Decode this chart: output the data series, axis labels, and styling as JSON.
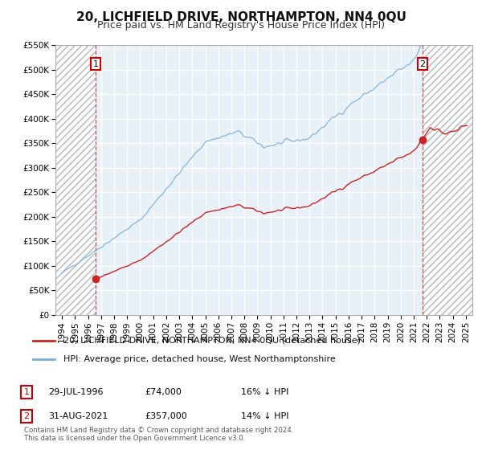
{
  "title": "20, LICHFIELD DRIVE, NORTHAMPTON, NN4 0QU",
  "subtitle": "Price paid vs. HM Land Registry's House Price Index (HPI)",
  "legend_line1": "20, LICHFIELD DRIVE, NORTHAMPTON, NN4 0QU (detached house)",
  "legend_line2": "HPI: Average price, detached house, West Northamptonshire",
  "annotation1_label": "1",
  "annotation1_date": "29-JUL-1996",
  "annotation1_price": "£74,000",
  "annotation1_hpi": "16% ↓ HPI",
  "annotation2_label": "2",
  "annotation2_date": "31-AUG-2021",
  "annotation2_price": "£357,000",
  "annotation2_hpi": "14% ↓ HPI",
  "footnote": "Contains HM Land Registry data © Crown copyright and database right 2024.\nThis data is licensed under the Open Government Licence v3.0.",
  "sale1_year": 1996.58,
  "sale1_price": 74000,
  "sale2_year": 2021.67,
  "sale2_price": 357000,
  "red_line_color": "#cc2222",
  "blue_line_color": "#7aaed6",
  "hatch_color": "#cccccc",
  "bg_color": "#ffffff",
  "plot_bg_color": "#e8f0f8",
  "ylim_min": 0,
  "ylim_max": 550000,
  "xlim_min": 1993.5,
  "xlim_max": 2025.5,
  "ytick_interval": 50000,
  "grid_color": "#ffffff",
  "title_fontsize": 11,
  "subtitle_fontsize": 9,
  "axis_fontsize": 7.5
}
